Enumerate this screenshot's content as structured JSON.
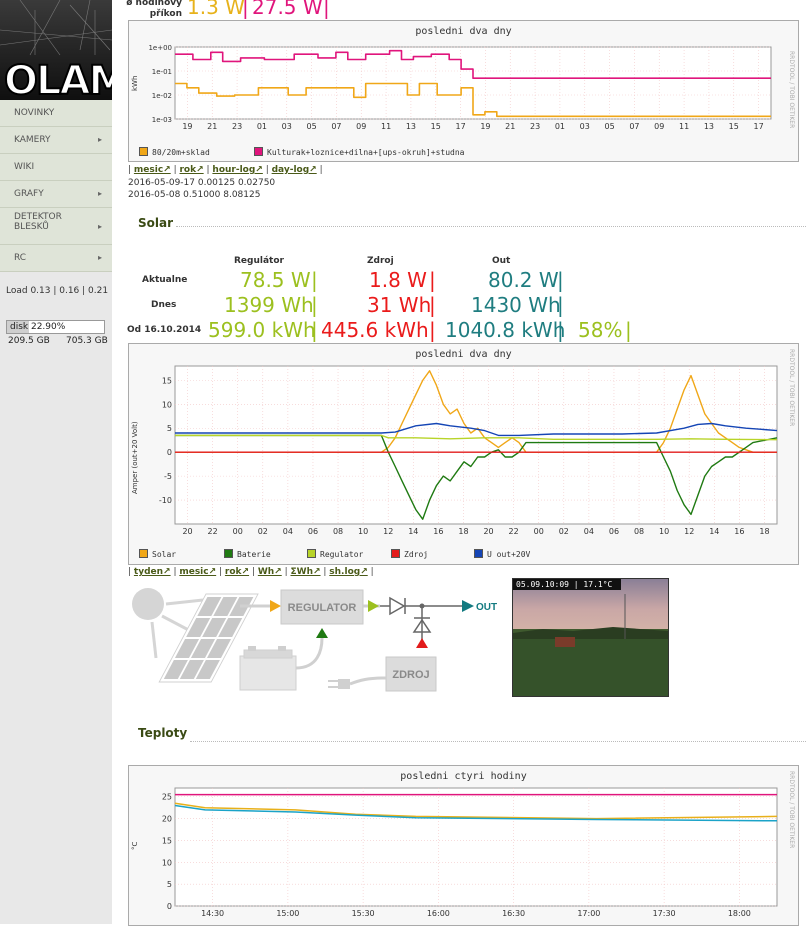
{
  "sidebar": {
    "logo_text": "OLAM",
    "nav": [
      {
        "label": "NOVINKY",
        "arrow": false
      },
      {
        "label": "KAMERY",
        "arrow": true
      },
      {
        "label": "WIKI",
        "arrow": false
      },
      {
        "label": "GRAFY",
        "arrow": true
      },
      {
        "label": "DETEKTOR BLESKŮ",
        "arrow": true
      },
      {
        "label": "RC",
        "arrow": true
      }
    ],
    "arrow_glyph": "▸",
    "load": "Load 0.13 | 0.16 | 0.21",
    "disk": {
      "text": "disk 22.90%",
      "fraction": 0.229,
      "used": "209.5 GB",
      "total": "705.3 GB"
    }
  },
  "header": {
    "label_line1": "ø hodinový",
    "label_line2": "příkon",
    "val1": "1.3 W",
    "val2": "27.5 W",
    "sep": "|"
  },
  "consumption": {
    "links": [
      "mesic↗",
      "rok↗",
      "hour-log↗",
      "day-log↗"
    ],
    "log_lines": [
      "2016-05-09-17 0.00125 0.02750",
      "2016-05-08 0.51000 8.08125"
    ]
  },
  "solar": {
    "section_title": "Solar",
    "col_headers": [
      "Regulátor",
      "Zdroj",
      "Out"
    ],
    "rows": [
      {
        "label": "Aktualne",
        "reg": "78.5 W",
        "zdroj": "1.8 W",
        "out": "80.2 W"
      },
      {
        "label": "Dnes",
        "reg": "1399 Wh",
        "zdroj": "31 Wh",
        "out": "1430 Wh"
      },
      {
        "label": "Od 16.10.2014",
        "reg": "599.0 kWh",
        "zdroj": "445.6 kWh",
        "out": "1040.8 kWh",
        "pct": "58%"
      }
    ],
    "sep": "|",
    "links": [
      "tyden↗",
      "mesic↗",
      "rok↗",
      "Wh↗",
      "ΣWh↗",
      "sh.log↗"
    ],
    "diagram": {
      "regulator": "REGULATOR",
      "zdroj": "ZDROJ",
      "out": "OUT"
    },
    "camera_stamp": "05.09.10:09 | 17.1°C"
  },
  "teploty": {
    "section_title": "Teploty"
  },
  "charts_meta": {
    "rrd_note": "RRDTOOL / TOBI OETIKER"
  },
  "chart_data": [
    {
      "type": "line",
      "title": "posledni dva dny",
      "ylabel": "kWh",
      "yscale": "log",
      "yticks": [
        "1e+00",
        "1e-01",
        "1e-02",
        "1e-03"
      ],
      "ylim": [
        0.001,
        1
      ],
      "xticks": [
        "19",
        "21",
        "23",
        "01",
        "03",
        "05",
        "07",
        "09",
        "11",
        "13",
        "15",
        "17",
        "19",
        "21",
        "23",
        "01",
        "03",
        "05",
        "07",
        "09",
        "11",
        "13",
        "15",
        "17"
      ],
      "series": [
        {
          "name": "80/20m+sklad",
          "color": "#f0a718",
          "points": [
            [
              0,
              0.03
            ],
            [
              4,
              0.03
            ],
            [
              4,
              0.02
            ],
            [
              8,
              0.02
            ],
            [
              8,
              0.012
            ],
            [
              14,
              0.012
            ],
            [
              14,
              0.009
            ],
            [
              20,
              0.009
            ],
            [
              20,
              0.01
            ],
            [
              28,
              0.01
            ],
            [
              28,
              0.02
            ],
            [
              38,
              0.02
            ],
            [
              38,
              0.01
            ],
            [
              44,
              0.01
            ],
            [
              44,
              0.02
            ],
            [
              60,
              0.02
            ],
            [
              60,
              0.008
            ],
            [
              64,
              0.008
            ],
            [
              64,
              0.03
            ],
            [
              78,
              0.03
            ],
            [
              78,
              0.01
            ],
            [
              82,
              0.01
            ],
            [
              82,
              0.03
            ],
            [
              88,
              0.03
            ],
            [
              88,
              0.01
            ],
            [
              96,
              0.01
            ],
            [
              96,
              0.02
            ],
            [
              100,
              0.02
            ],
            [
              100,
              0.0015
            ],
            [
              104,
              0.0015
            ],
            [
              104,
              0.002
            ],
            [
              108,
              0.002
            ],
            [
              108,
              0.0013
            ],
            [
              200,
              0.0013
            ]
          ]
        },
        {
          "name": "Kulturak+loznice+dilna+[ups-okruh]+studna",
          "color": "#e0157c",
          "points": [
            [
              0,
              0.5
            ],
            [
              6,
              0.5
            ],
            [
              6,
              0.3
            ],
            [
              12,
              0.3
            ],
            [
              12,
              0.6
            ],
            [
              16,
              0.6
            ],
            [
              16,
              0.25
            ],
            [
              22,
              0.25
            ],
            [
              22,
              0.35
            ],
            [
              30,
              0.35
            ],
            [
              30,
              0.3
            ],
            [
              40,
              0.3
            ],
            [
              40,
              0.5
            ],
            [
              48,
              0.5
            ],
            [
              48,
              0.35
            ],
            [
              54,
              0.35
            ],
            [
              54,
              0.6
            ],
            [
              58,
              0.6
            ],
            [
              58,
              0.3
            ],
            [
              64,
              0.3
            ],
            [
              64,
              0.5
            ],
            [
              72,
              0.5
            ],
            [
              72,
              0.7
            ],
            [
              76,
              0.7
            ],
            [
              76,
              0.3
            ],
            [
              80,
              0.3
            ],
            [
              80,
              0.4
            ],
            [
              86,
              0.4
            ],
            [
              86,
              0.5
            ],
            [
              92,
              0.5
            ],
            [
              92,
              0.3
            ],
            [
              96,
              0.3
            ],
            [
              96,
              0.12
            ],
            [
              100,
              0.12
            ],
            [
              100,
              0.05
            ],
            [
              200,
              0.05
            ]
          ]
        }
      ]
    },
    {
      "type": "line",
      "title": "posledni dva dny",
      "ylabel": "Amper (out+20 Volt)",
      "ylim": [
        -15,
        18
      ],
      "yticks": [
        15,
        10,
        5,
        0,
        -5,
        -10
      ],
      "xticks": [
        "20",
        "22",
        "00",
        "02",
        "04",
        "06",
        "08",
        "10",
        "12",
        "14",
        "16",
        "18",
        "20",
        "22",
        "00",
        "02",
        "04",
        "06",
        "08",
        "10",
        "12",
        "14",
        "16",
        "18"
      ],
      "series": [
        {
          "name": "Solar",
          "color": "#f0a718",
          "points": [
            [
              0,
              0
            ],
            [
              60,
              0
            ],
            [
              62,
              1
            ],
            [
              64,
              3
            ],
            [
              66,
              6
            ],
            [
              68,
              9
            ],
            [
              70,
              12
            ],
            [
              72,
              15
            ],
            [
              74,
              17
            ],
            [
              76,
              14
            ],
            [
              78,
              10
            ],
            [
              80,
              8
            ],
            [
              82,
              9
            ],
            [
              84,
              6
            ],
            [
              86,
              4
            ],
            [
              88,
              5
            ],
            [
              90,
              3
            ],
            [
              92,
              2
            ],
            [
              94,
              1
            ],
            [
              96,
              2
            ],
            [
              98,
              3
            ],
            [
              100,
              2
            ],
            [
              102,
              0
            ],
            [
              140,
              0
            ],
            [
              142,
              2
            ],
            [
              144,
              5
            ],
            [
              146,
              9
            ],
            [
              148,
              13
            ],
            [
              150,
              16
            ],
            [
              152,
              12
            ],
            [
              154,
              8
            ],
            [
              156,
              6
            ],
            [
              158,
              4
            ],
            [
              160,
              3
            ],
            [
              162,
              2
            ],
            [
              164,
              1
            ],
            [
              166,
              0.5
            ],
            [
              168,
              0
            ],
            [
              175,
              0
            ]
          ]
        },
        {
          "name": "Baterie",
          "color": "#1f7a12",
          "points": [
            [
              0,
              3.5
            ],
            [
              60,
              3.5
            ],
            [
              62,
              0
            ],
            [
              64,
              -3
            ],
            [
              66,
              -6
            ],
            [
              68,
              -9
            ],
            [
              70,
              -12
            ],
            [
              72,
              -14
            ],
            [
              74,
              -10
            ],
            [
              76,
              -7
            ],
            [
              78,
              -5
            ],
            [
              80,
              -6
            ],
            [
              82,
              -4
            ],
            [
              84,
              -2
            ],
            [
              86,
              -3
            ],
            [
              88,
              -1
            ],
            [
              90,
              -1
            ],
            [
              92,
              0
            ],
            [
              94,
              0.5
            ],
            [
              96,
              -1
            ],
            [
              98,
              -1
            ],
            [
              100,
              0
            ],
            [
              102,
              2
            ],
            [
              140,
              2
            ],
            [
              142,
              -1
            ],
            [
              144,
              -4
            ],
            [
              146,
              -8
            ],
            [
              148,
              -11
            ],
            [
              150,
              -13
            ],
            [
              152,
              -9
            ],
            [
              154,
              -5
            ],
            [
              156,
              -3
            ],
            [
              158,
              -2
            ],
            [
              160,
              -1
            ],
            [
              162,
              -1
            ],
            [
              164,
              0
            ],
            [
              166,
              1
            ],
            [
              168,
              2
            ],
            [
              175,
              3
            ]
          ]
        },
        {
          "name": "Regulator",
          "color": "#b8d429",
          "points": [
            [
              0,
              3.5
            ],
            [
              60,
              3.5
            ],
            [
              62,
              3
            ],
            [
              70,
              3
            ],
            [
              80,
              2.8
            ],
            [
              90,
              3
            ],
            [
              100,
              3
            ],
            [
              110,
              2.7
            ],
            [
              140,
              2.7
            ],
            [
              150,
              2.8
            ],
            [
              160,
              2.7
            ],
            [
              175,
              2.6
            ]
          ]
        },
        {
          "name": "Zdroj",
          "color": "#e21b1b",
          "points": [
            [
              0,
              0
            ],
            [
              175,
              0
            ]
          ]
        },
        {
          "name": "U out+20V",
          "color": "#1545b5",
          "points": [
            [
              0,
              4
            ],
            [
              60,
              4
            ],
            [
              64,
              4.2
            ],
            [
              70,
              5.5
            ],
            [
              76,
              6
            ],
            [
              80,
              5.5
            ],
            [
              86,
              5
            ],
            [
              90,
              4.5
            ],
            [
              94,
              3.5
            ],
            [
              100,
              3.5
            ],
            [
              110,
              3.8
            ],
            [
              130,
              3.8
            ],
            [
              140,
              4
            ],
            [
              148,
              5
            ],
            [
              152,
              5.8
            ],
            [
              156,
              6
            ],
            [
              160,
              5.5
            ],
            [
              166,
              5
            ],
            [
              170,
              4.8
            ],
            [
              175,
              4.5
            ]
          ]
        }
      ]
    },
    {
      "type": "line",
      "title": "posledni ctyri hodiny",
      "ylabel": "°C",
      "ylim": [
        0,
        27
      ],
      "yticks": [
        25,
        20,
        15,
        10,
        5,
        0
      ],
      "xticks": [
        "14:30",
        "15:00",
        "15:30",
        "16:00",
        "16:30",
        "17:00",
        "17:30",
        "18:00"
      ],
      "series": [
        {
          "name": "",
          "color": "#e0157c",
          "points": [
            [
              0,
              25.5
            ],
            [
              100,
              25.5
            ]
          ]
        },
        {
          "name": "",
          "color": "#e8b01a",
          "points": [
            [
              0,
              23.5
            ],
            [
              5,
              22.5
            ],
            [
              20,
              22
            ],
            [
              30,
              21
            ],
            [
              40,
              20.5
            ],
            [
              70,
              20
            ],
            [
              100,
              20.5
            ]
          ]
        },
        {
          "name": "",
          "color": "#1ba3c8",
          "points": [
            [
              0,
              23
            ],
            [
              5,
              22
            ],
            [
              20,
              21.5
            ],
            [
              30,
              20.8
            ],
            [
              40,
              20.2
            ],
            [
              70,
              19.8
            ],
            [
              100,
              19.5
            ]
          ]
        }
      ]
    }
  ]
}
